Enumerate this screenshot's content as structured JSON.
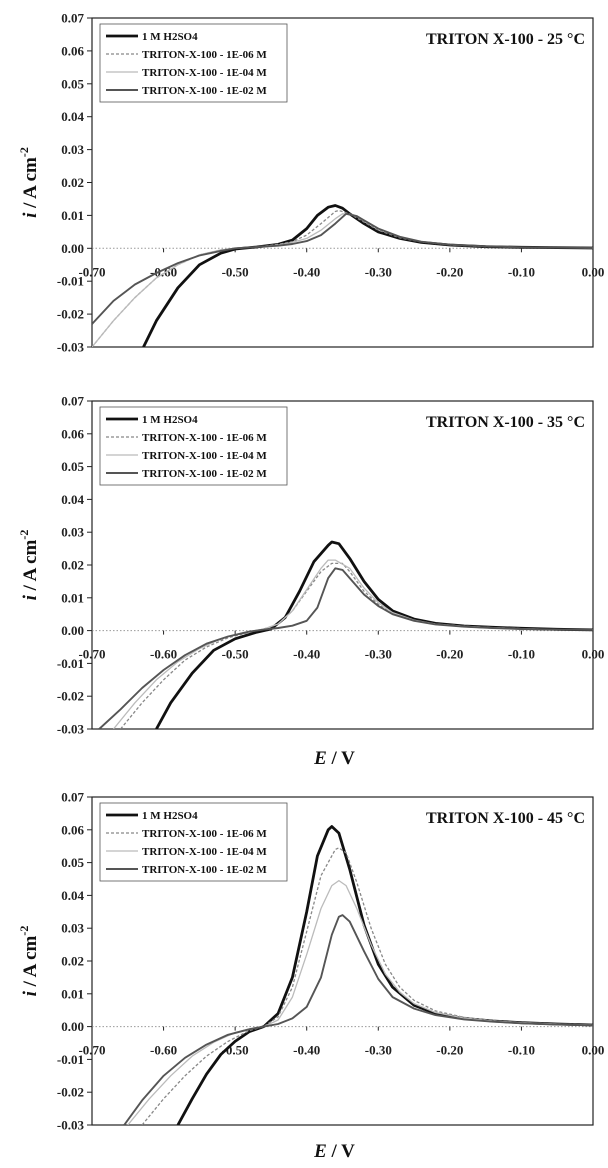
{
  "chart_data": [
    {
      "type": "line",
      "title": "TRITON X-100 - 25 °C",
      "ylabel": "i / A cm-2",
      "xlabel": "",
      "xlim": [
        -0.7,
        0.0
      ],
      "ylim": [
        -0.03,
        0.07
      ],
      "x_ticks": [
        "-0.70",
        "-0.60",
        "-0.50",
        "-0.40",
        "-0.30",
        "-0.20",
        "-0.10",
        "0.00"
      ],
      "y_ticks": [
        "0.07",
        "0.06",
        "0.05",
        "0.04",
        "0.03",
        "0.02",
        "0.01",
        "0.00",
        "-0.01",
        "-0.02",
        "-0.03"
      ],
      "legend_position": "top-left",
      "series": [
        {
          "name": "1 M H2SO4",
          "color": "#111111",
          "x": [
            -0.628,
            -0.61,
            -0.58,
            -0.55,
            -0.52,
            -0.5,
            -0.47,
            -0.44,
            -0.42,
            -0.4,
            -0.385,
            -0.37,
            -0.36,
            -0.35,
            -0.34,
            -0.32,
            -0.3,
            -0.27,
            -0.24,
            -0.2,
            -0.15,
            -0.1,
            -0.05,
            0.0
          ],
          "y": [
            -0.03,
            -0.022,
            -0.012,
            -0.005,
            -0.0015,
            -0.0002,
            0.0004,
            0.0012,
            0.0025,
            0.006,
            0.01,
            0.0125,
            0.013,
            0.0122,
            0.0105,
            0.0075,
            0.005,
            0.003,
            0.0018,
            0.001,
            0.0005,
            0.0003,
            0.0002,
            0.0001
          ]
        },
        {
          "name": "TRITON-X-100 - 1E-06 M",
          "color": "#888888",
          "x": [
            -0.7,
            -0.67,
            -0.64,
            -0.61,
            -0.58,
            -0.55,
            -0.52,
            -0.5,
            -0.47,
            -0.44,
            -0.42,
            -0.4,
            -0.38,
            -0.36,
            -0.355,
            -0.34,
            -0.32,
            -0.3,
            -0.27,
            -0.24,
            -0.2,
            -0.15,
            -0.1,
            -0.05,
            0.0
          ],
          "y": [
            -0.03,
            -0.022,
            -0.015,
            -0.009,
            -0.005,
            -0.002,
            -0.0005,
            0.0,
            0.0004,
            0.0012,
            0.002,
            0.004,
            0.0075,
            0.0112,
            0.0115,
            0.0105,
            0.008,
            0.0055,
            0.0032,
            0.0019,
            0.001,
            0.0005,
            0.0003,
            0.0002,
            0.0001
          ]
        },
        {
          "name": "TRITON-X-100 - 1E-04 M",
          "color": "#bbbbbb",
          "x": [
            -0.7,
            -0.67,
            -0.64,
            -0.61,
            -0.58,
            -0.55,
            -0.52,
            -0.5,
            -0.47,
            -0.44,
            -0.42,
            -0.4,
            -0.38,
            -0.36,
            -0.35,
            -0.335,
            -0.32,
            -0.3,
            -0.27,
            -0.24,
            -0.2,
            -0.15,
            -0.1,
            -0.05,
            0.0
          ],
          "y": [
            -0.03,
            -0.022,
            -0.015,
            -0.009,
            -0.005,
            -0.002,
            -0.0005,
            0.0,
            0.0004,
            0.001,
            0.0018,
            0.003,
            0.0055,
            0.009,
            0.0105,
            0.0102,
            0.0085,
            0.006,
            0.0035,
            0.002,
            0.0011,
            0.0006,
            0.0003,
            0.0002,
            0.0001
          ]
        },
        {
          "name": "TRITON-X-100 - 1E-02 M",
          "color": "#555555",
          "x": [
            -0.7,
            -0.67,
            -0.64,
            -0.61,
            -0.58,
            -0.55,
            -0.52,
            -0.5,
            -0.47,
            -0.44,
            -0.42,
            -0.4,
            -0.38,
            -0.36,
            -0.345,
            -0.33,
            -0.32,
            -0.3,
            -0.27,
            -0.24,
            -0.2,
            -0.15,
            -0.1,
            -0.05,
            0.0
          ],
          "y": [
            -0.023,
            -0.016,
            -0.011,
            -0.0075,
            -0.0045,
            -0.0022,
            -0.0008,
            0.0,
            0.0004,
            0.0008,
            0.0013,
            0.0022,
            0.004,
            0.0075,
            0.0105,
            0.0098,
            0.0085,
            0.006,
            0.0035,
            0.002,
            0.0011,
            0.0006,
            0.0003,
            0.0002,
            0.0001
          ]
        }
      ]
    },
    {
      "type": "line",
      "title": "TRITON X-100 - 35 °C",
      "ylabel": "i / A cm-2",
      "xlabel": "E / V",
      "xlim": [
        -0.7,
        0.0
      ],
      "ylim": [
        -0.03,
        0.07
      ],
      "x_ticks": [
        "-0.70",
        "-0.60",
        "-0.50",
        "-0.40",
        "-0.30",
        "-0.20",
        "-0.10",
        "0.00"
      ],
      "y_ticks": [
        "0.07",
        "0.06",
        "0.05",
        "0.04",
        "0.03",
        "0.02",
        "0.01",
        "0.00",
        "-0.01",
        "-0.02",
        "-0.03"
      ],
      "legend_position": "top-left",
      "series": [
        {
          "name": "1 M H2SO4",
          "color": "#111111",
          "x": [
            -0.61,
            -0.59,
            -0.56,
            -0.53,
            -0.5,
            -0.47,
            -0.45,
            -0.43,
            -0.41,
            -0.39,
            -0.37,
            -0.365,
            -0.355,
            -0.34,
            -0.32,
            -0.3,
            -0.28,
            -0.25,
            -0.22,
            -0.18,
            -0.14,
            -0.1,
            -0.05,
            0.0
          ],
          "y": [
            -0.03,
            -0.022,
            -0.013,
            -0.006,
            -0.0025,
            -0.0005,
            0.0005,
            0.004,
            0.012,
            0.021,
            0.026,
            0.027,
            0.0265,
            0.022,
            0.015,
            0.0095,
            0.006,
            0.0035,
            0.0022,
            0.0014,
            0.001,
            0.0007,
            0.0004,
            0.0002
          ]
        },
        {
          "name": "TRITON-X-100 - 1E-06 M",
          "color": "#888888",
          "x": [
            -0.66,
            -0.63,
            -0.6,
            -0.57,
            -0.54,
            -0.51,
            -0.48,
            -0.46,
            -0.44,
            -0.42,
            -0.4,
            -0.38,
            -0.365,
            -0.35,
            -0.34,
            -0.32,
            -0.3,
            -0.28,
            -0.25,
            -0.22,
            -0.18,
            -0.14,
            -0.1,
            -0.05,
            0.0
          ],
          "y": [
            -0.03,
            -0.022,
            -0.015,
            -0.009,
            -0.005,
            -0.0022,
            -0.0005,
            0.0005,
            0.002,
            0.006,
            0.012,
            0.018,
            0.0205,
            0.0205,
            0.018,
            0.012,
            0.008,
            0.005,
            0.003,
            0.002,
            0.0013,
            0.0009,
            0.0006,
            0.0003,
            0.0002
          ]
        },
        {
          "name": "TRITON-X-100 - 1E-04 M",
          "color": "#bbbbbb",
          "x": [
            -0.67,
            -0.64,
            -0.61,
            -0.58,
            -0.55,
            -0.52,
            -0.49,
            -0.46,
            -0.44,
            -0.42,
            -0.4,
            -0.38,
            -0.37,
            -0.36,
            -0.34,
            -0.32,
            -0.3,
            -0.28,
            -0.25,
            -0.22,
            -0.18,
            -0.14,
            -0.1,
            -0.05,
            0.0
          ],
          "y": [
            -0.03,
            -0.022,
            -0.015,
            -0.0095,
            -0.0055,
            -0.0025,
            -0.0007,
            0.0005,
            0.002,
            0.006,
            0.0125,
            0.019,
            0.0215,
            0.0215,
            0.019,
            0.013,
            0.0085,
            0.0055,
            0.0032,
            0.002,
            0.0013,
            0.0009,
            0.0006,
            0.0003,
            0.0002
          ]
        },
        {
          "name": "TRITON-X-100 - 1E-02 M",
          "color": "#555555",
          "x": [
            -0.69,
            -0.66,
            -0.63,
            -0.6,
            -0.57,
            -0.54,
            -0.51,
            -0.48,
            -0.46,
            -0.44,
            -0.42,
            -0.4,
            -0.385,
            -0.37,
            -0.36,
            -0.35,
            -0.34,
            -0.32,
            -0.3,
            -0.28,
            -0.25,
            -0.22,
            -0.18,
            -0.14,
            -0.1,
            -0.05,
            0.0
          ],
          "y": [
            -0.03,
            -0.024,
            -0.0175,
            -0.012,
            -0.0075,
            -0.004,
            -0.0018,
            -0.0003,
            0.0003,
            0.0008,
            0.0015,
            0.003,
            0.007,
            0.016,
            0.019,
            0.0185,
            0.016,
            0.011,
            0.0075,
            0.005,
            0.003,
            0.0019,
            0.0012,
            0.0008,
            0.0005,
            0.0003,
            0.0002
          ]
        }
      ]
    },
    {
      "type": "line",
      "title": "TRITON X-100 - 45 °C",
      "ylabel": "i / A cm-2",
      "xlabel": "E / V",
      "xlim": [
        -0.7,
        0.0
      ],
      "ylim": [
        -0.03,
        0.07
      ],
      "x_ticks": [
        "-0.70",
        "-0.60",
        "-0.50",
        "-0.40",
        "-0.30",
        "-0.20",
        "-0.10",
        "0.00"
      ],
      "y_ticks": [
        "0.07",
        "0.06",
        "0.05",
        "0.04",
        "0.03",
        "0.02",
        "0.01",
        "0.00",
        "-0.01",
        "-0.02",
        "-0.03"
      ],
      "legend_position": "top-left",
      "series": [
        {
          "name": "1 M H2SO4",
          "color": "#111111",
          "x": [
            -0.58,
            -0.56,
            -0.54,
            -0.52,
            -0.5,
            -0.48,
            -0.46,
            -0.44,
            -0.42,
            -0.4,
            -0.385,
            -0.37,
            -0.365,
            -0.355,
            -0.34,
            -0.32,
            -0.3,
            -0.28,
            -0.25,
            -0.22,
            -0.18,
            -0.14,
            -0.1,
            -0.05,
            0.0
          ],
          "y": [
            -0.03,
            -0.022,
            -0.0145,
            -0.0085,
            -0.0045,
            -0.0015,
            0.0,
            0.004,
            0.015,
            0.035,
            0.052,
            0.06,
            0.061,
            0.059,
            0.048,
            0.031,
            0.019,
            0.012,
            0.0065,
            0.004,
            0.0025,
            0.0017,
            0.0012,
            0.0008,
            0.0005
          ]
        },
        {
          "name": "TRITON-X-100 - 1E-06 M",
          "color": "#888888",
          "x": [
            -0.63,
            -0.6,
            -0.57,
            -0.54,
            -0.51,
            -0.48,
            -0.46,
            -0.44,
            -0.42,
            -0.4,
            -0.38,
            -0.36,
            -0.355,
            -0.345,
            -0.33,
            -0.31,
            -0.29,
            -0.27,
            -0.25,
            -0.22,
            -0.18,
            -0.14,
            -0.1,
            -0.05,
            0.0
          ],
          "y": [
            -0.03,
            -0.022,
            -0.015,
            -0.009,
            -0.0045,
            -0.0012,
            0.0,
            0.003,
            0.012,
            0.029,
            0.046,
            0.054,
            0.0545,
            0.053,
            0.044,
            0.03,
            0.019,
            0.012,
            0.008,
            0.0048,
            0.0028,
            0.0018,
            0.0012,
            0.0008,
            0.0005
          ]
        },
        {
          "name": "TRITON-X-100 - 1E-04 M",
          "color": "#bbbbbb",
          "x": [
            -0.65,
            -0.62,
            -0.59,
            -0.56,
            -0.53,
            -0.5,
            -0.47,
            -0.46,
            -0.44,
            -0.42,
            -0.4,
            -0.38,
            -0.365,
            -0.355,
            -0.345,
            -0.33,
            -0.31,
            -0.29,
            -0.27,
            -0.25,
            -0.22,
            -0.18,
            -0.14,
            -0.1,
            -0.05,
            0.0
          ],
          "y": [
            -0.03,
            -0.022,
            -0.015,
            -0.009,
            -0.0048,
            -0.0018,
            -0.0002,
            0.0,
            0.002,
            0.009,
            0.022,
            0.036,
            0.043,
            0.0445,
            0.043,
            0.036,
            0.025,
            0.016,
            0.0105,
            0.007,
            0.0043,
            0.0026,
            0.0017,
            0.0012,
            0.0008,
            0.0005
          ]
        },
        {
          "name": "TRITON-X-100 - 1E-02 M",
          "color": "#555555",
          "x": [
            -0.655,
            -0.63,
            -0.6,
            -0.57,
            -0.54,
            -0.51,
            -0.48,
            -0.46,
            -0.44,
            -0.42,
            -0.4,
            -0.38,
            -0.365,
            -0.355,
            -0.35,
            -0.34,
            -0.32,
            -0.3,
            -0.28,
            -0.25,
            -0.22,
            -0.18,
            -0.14,
            -0.1,
            -0.05,
            0.0
          ],
          "y": [
            -0.03,
            -0.0225,
            -0.015,
            -0.0095,
            -0.0055,
            -0.0025,
            -0.0008,
            0.0,
            0.0008,
            0.0025,
            0.006,
            0.015,
            0.028,
            0.0335,
            0.034,
            0.032,
            0.023,
            0.0145,
            0.009,
            0.0055,
            0.0035,
            0.0022,
            0.0015,
            0.001,
            0.0006,
            0.0004
          ]
        }
      ]
    }
  ]
}
